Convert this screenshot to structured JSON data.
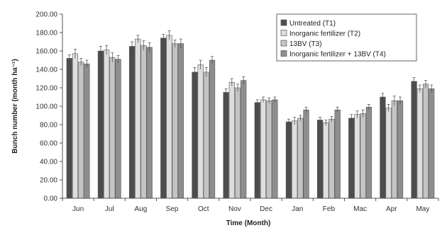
{
  "chart_data": {
    "type": "bar",
    "title": "",
    "xlabel": "Time (Month)",
    "ylabel": "Bunch number (month ha⁻¹)",
    "ylim": [
      0,
      200
    ],
    "yticks": [
      "0.00",
      "20.00",
      "40.00",
      "60.00",
      "80.00",
      "100.00",
      "120.00",
      "140.00",
      "160.00",
      "180.00",
      "200.00"
    ],
    "categories": [
      "Jun",
      "Jul",
      "Aug",
      "Sep",
      "Oct",
      "Nov",
      "Dec",
      "Jan",
      "Feb",
      "Mac",
      "Apr",
      "May"
    ],
    "grid": false,
    "legend_position": "top-right",
    "series": [
      {
        "name": "Untreated (T1)",
        "color": "#4d4d4d",
        "values": [
          152,
          160,
          165,
          174,
          137,
          115,
          104,
          83,
          85,
          87,
          110,
          127
        ],
        "errors": [
          4,
          5,
          5,
          4,
          5,
          4,
          3,
          3,
          3,
          4,
          4,
          4
        ]
      },
      {
        "name": "Inorganic fertilizer (T2)",
        "color": "#dedede",
        "values": [
          157,
          161,
          173,
          177,
          145,
          126,
          107,
          84,
          82,
          91,
          98,
          119
        ],
        "errors": [
          5,
          5,
          4,
          5,
          5,
          4,
          3,
          4,
          3,
          4,
          4,
          4
        ]
      },
      {
        "name": "13BV (T3)",
        "color": "#c4c4c4",
        "values": [
          148,
          153,
          166,
          168,
          137,
          120,
          106,
          87,
          86,
          92,
          106,
          124
        ],
        "errors": [
          4,
          5,
          5,
          4,
          5,
          4,
          3,
          3,
          3,
          4,
          5,
          4
        ]
      },
      {
        "name": "Inorganic fertilizer + 13BV (T4)",
        "color": "#8e8e8e",
        "values": [
          146,
          151,
          164,
          168,
          150,
          128,
          107,
          96,
          96,
          99,
          106,
          119
        ],
        "errors": [
          4,
          4,
          5,
          5,
          4,
          4,
          3,
          3,
          3,
          3,
          4,
          4
        ]
      }
    ]
  }
}
